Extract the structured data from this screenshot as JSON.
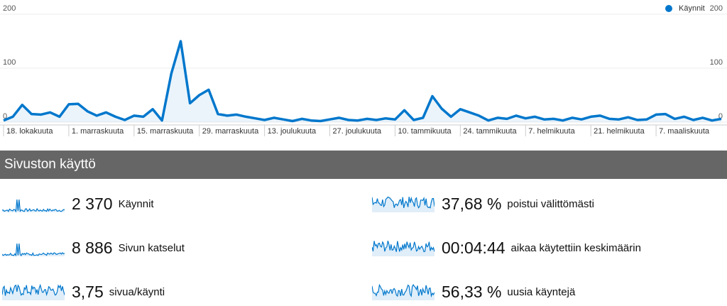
{
  "chart_data": {
    "type": "line",
    "legend": "Käynnit",
    "color": "#0077cc",
    "ylim": [
      0,
      200
    ],
    "yticks": [
      0,
      100,
      200
    ],
    "grid": true,
    "categories": [
      "18. lokakuuta",
      null,
      null,
      null,
      null,
      null,
      null,
      "1. marraskuuta",
      null,
      null,
      null,
      null,
      null,
      null,
      "15. marraskuuta",
      null,
      null,
      null,
      null,
      null,
      null,
      "29. marraskuuta",
      null,
      null,
      null,
      null,
      null,
      null,
      "13. joulukuuta",
      null,
      null,
      null,
      null,
      null,
      null,
      "27. joulukuuta",
      null,
      null,
      null,
      null,
      null,
      null,
      "10. tammikuuta",
      null,
      null,
      null,
      null,
      null,
      null,
      "24. tammikuuta",
      null,
      null,
      null,
      null,
      null,
      null,
      "7. helmikuuta",
      null,
      null,
      null,
      null,
      null,
      null,
      "21. helmikuuta",
      null,
      null,
      null,
      null,
      null,
      null,
      "7. maaliskuuta",
      null,
      null,
      null,
      null,
      null,
      null,
      null
    ],
    "values": [
      3,
      10,
      32,
      15,
      14,
      18,
      10,
      33,
      34,
      20,
      12,
      18,
      10,
      4,
      12,
      10,
      24,
      3,
      90,
      150,
      35,
      50,
      60,
      15,
      12,
      14,
      10,
      7,
      4,
      8,
      5,
      2,
      6,
      3,
      2,
      5,
      8,
      4,
      3,
      6,
      4,
      7,
      5,
      22,
      4,
      8,
      48,
      25,
      10,
      24,
      18,
      12,
      3,
      8,
      6,
      12,
      7,
      10,
      5,
      6,
      3,
      8,
      5,
      10,
      12,
      6,
      5,
      9,
      4,
      5,
      14,
      15,
      6,
      10,
      4,
      8,
      3,
      6
    ]
  },
  "section": {
    "title": "Sivuston käyttö",
    "metrics": [
      {
        "value": "2 370",
        "label": "Käynnit"
      },
      {
        "value": "37,68 %",
        "label": "poistui välittömästi"
      },
      {
        "value": "8 886",
        "label": "Sivun katselut"
      },
      {
        "value": "00:04:44",
        "label": "aikaa käytettiin keskimäärin"
      },
      {
        "value": "3,75",
        "label": "sivua/käynti"
      },
      {
        "value": "56,33 %",
        "label": "uusia käyntejä"
      }
    ]
  }
}
